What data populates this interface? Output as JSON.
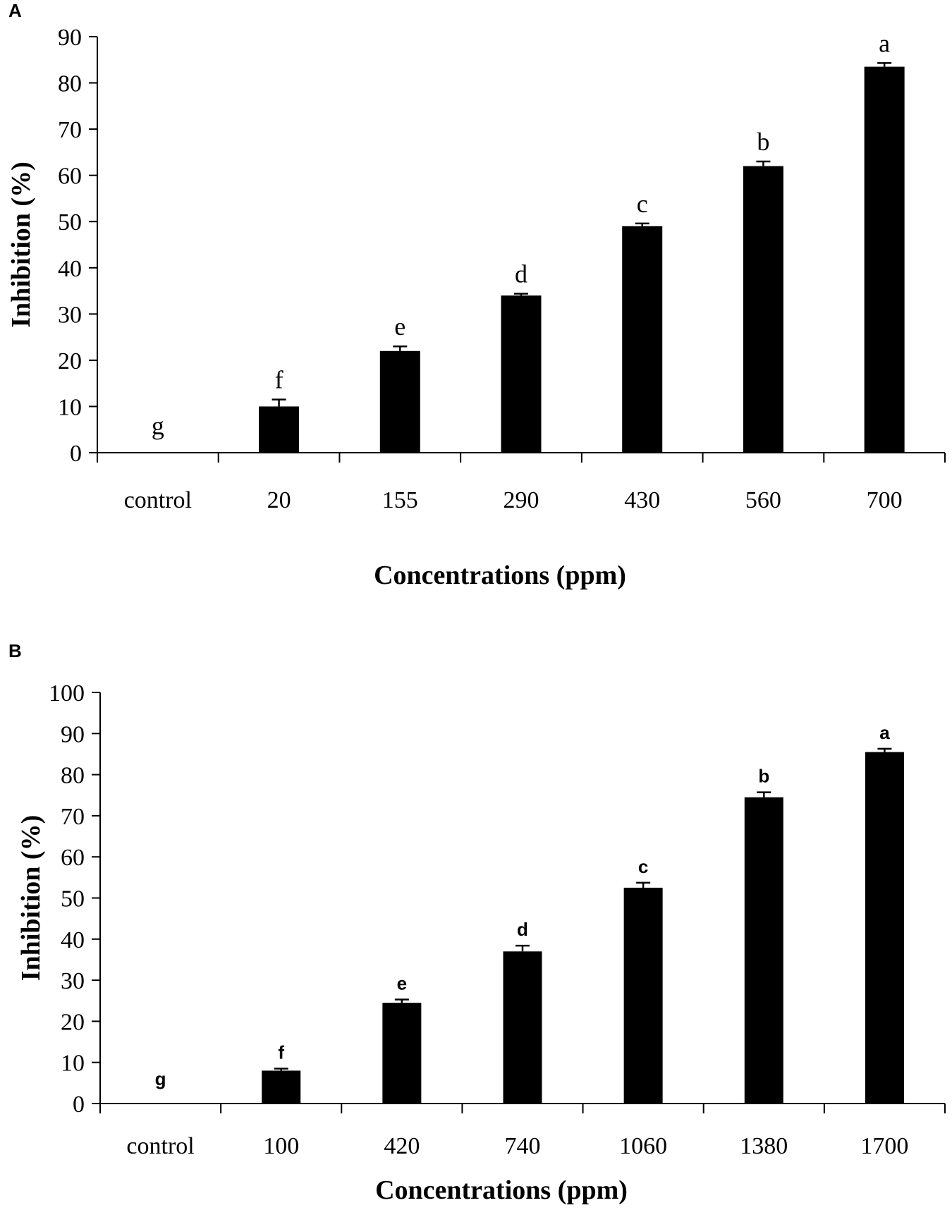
{
  "chart_data": [
    {
      "panel": "A",
      "type": "bar",
      "categories": [
        "control",
        "20",
        "155",
        "290",
        "430",
        "560",
        "700"
      ],
      "values": [
        0,
        10,
        22,
        34,
        49,
        62,
        83.5
      ],
      "errors": [
        0,
        1.5,
        1.0,
        0.4,
        0.6,
        1.0,
        0.8
      ],
      "significance_letters": [
        "g",
        "f",
        "e",
        "d",
        "c",
        "b",
        "a"
      ],
      "xlabel": "Concentrations (ppm)",
      "ylabel": "Inhibition (%)",
      "ylim": [
        0,
        90
      ],
      "yticks": [
        0,
        10,
        20,
        30,
        40,
        50,
        60,
        70,
        80,
        90
      ],
      "bar_color": "#000000"
    },
    {
      "panel": "B",
      "type": "bar",
      "categories": [
        "control",
        "100",
        "420",
        "740",
        "1060",
        "1380",
        "1700"
      ],
      "values": [
        0,
        8,
        24.5,
        37,
        52.5,
        74.5,
        85.5
      ],
      "errors": [
        0,
        0.5,
        0.8,
        1.4,
        1.2,
        1.2,
        0.8
      ],
      "significance_letters": [
        "g",
        "f",
        "e",
        "d",
        "c",
        "b",
        "a"
      ],
      "xlabel": "Concentrations (ppm)",
      "ylabel": "Inhibition (%)",
      "ylim": [
        0,
        100
      ],
      "yticks": [
        0,
        10,
        20,
        30,
        40,
        50,
        60,
        70,
        80,
        90,
        100
      ],
      "bar_color": "#000000"
    }
  ]
}
